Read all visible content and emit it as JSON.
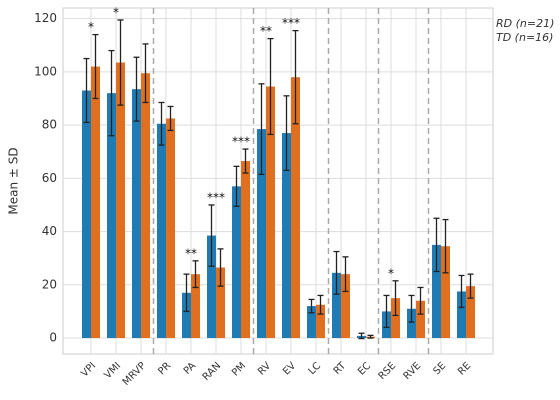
{
  "chart_data": {
    "type": "bar",
    "ylabel": "Mean ± SD",
    "categories": [
      "VPI",
      "VMI",
      "MRVP",
      "PR",
      "PA",
      "RAN",
      "PM",
      "RV",
      "EV",
      "LC",
      "RT",
      "EC",
      "RSE",
      "RVE",
      "SE",
      "RE"
    ],
    "series": [
      {
        "name": "RD (n=21)",
        "color": "#1f7bb4",
        "values": [
          93,
          92,
          93.5,
          80.5,
          17,
          38.5,
          57,
          78.5,
          77,
          12,
          24.5,
          0.8,
          10,
          11,
          35,
          17.5
        ],
        "errors": [
          12,
          16,
          12,
          8,
          7,
          11.5,
          7.5,
          17,
          14,
          2.5,
          8,
          1,
          6,
          5,
          10,
          6
        ]
      },
      {
        "name": "TD (n=16)",
        "color": "#e07020",
        "values": [
          102,
          103.5,
          99.5,
          82.5,
          24,
          26.5,
          66.5,
          94.5,
          98,
          12.5,
          24,
          0.5,
          15,
          14,
          34.5,
          19.5
        ],
        "errors": [
          12,
          16,
          11,
          4.5,
          5,
          7,
          4.5,
          18,
          17.5,
          3.5,
          6.5,
          0.5,
          6.5,
          5,
          10,
          4.5
        ]
      }
    ],
    "significance": [
      "*",
      "*",
      null,
      null,
      "**",
      "***",
      "***",
      "**",
      "***",
      null,
      null,
      null,
      "*",
      null,
      null,
      null
    ],
    "separators_after": [
      2,
      6,
      9,
      11,
      13
    ],
    "ylim": [
      -6,
      124
    ],
    "yticks": [
      0,
      20,
      40,
      60,
      80,
      100,
      120
    ],
    "grid": true
  }
}
